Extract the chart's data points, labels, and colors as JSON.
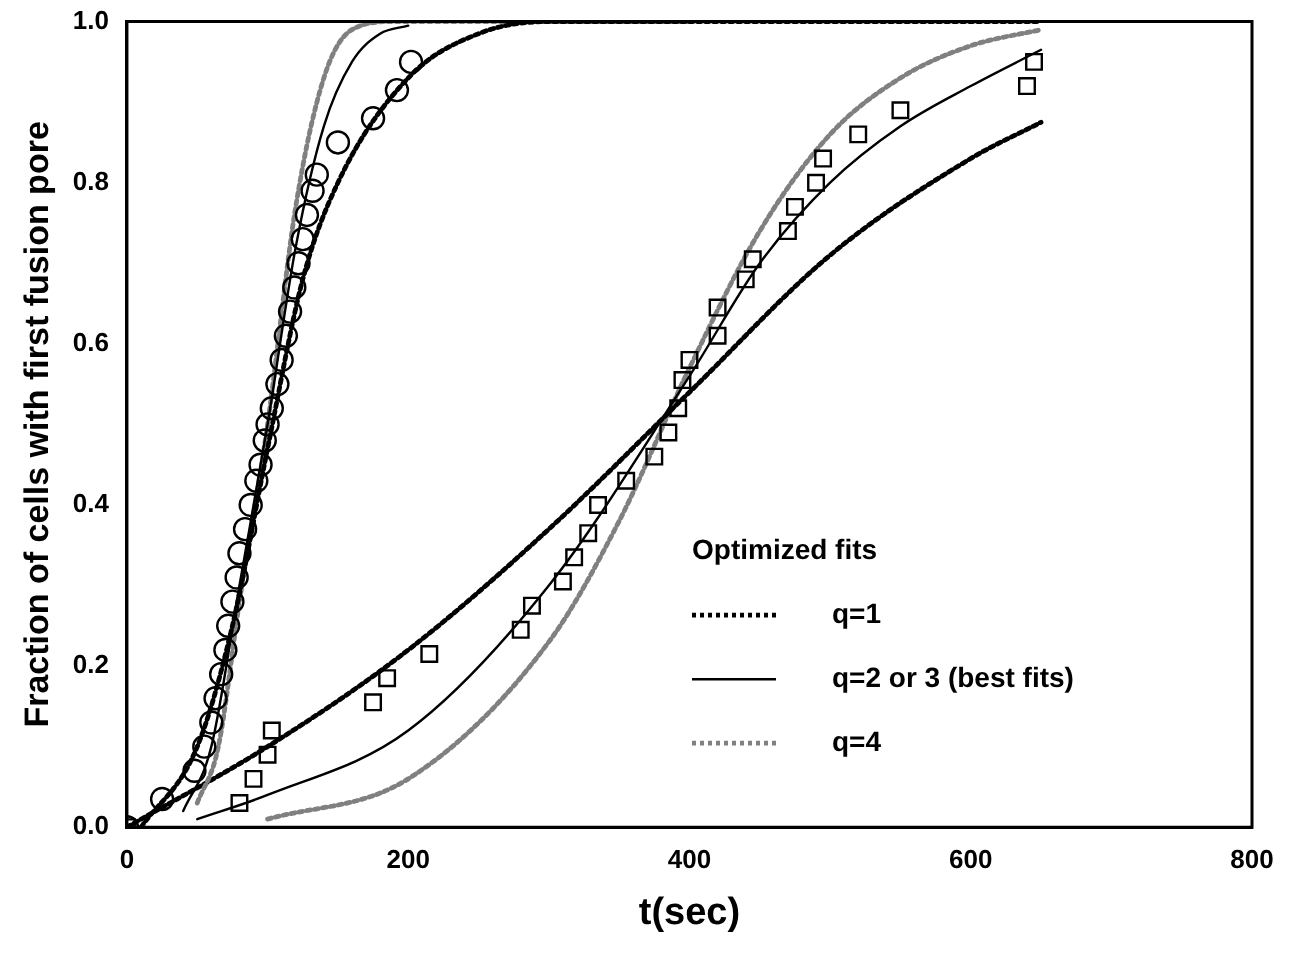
{
  "chart_data": {
    "type": "line",
    "xlabel": "t(sec)",
    "ylabel": "Fraction of cells with first fusion pore",
    "legend_title": "Optimized fits",
    "legend": "bottom right",
    "grid": false,
    "xlim": [
      0,
      800
    ],
    "xticks": [
      0,
      200,
      400,
      600,
      800
    ],
    "ylim": [
      0,
      1
    ],
    "yticks": [
      {
        "value": 0,
        "label": "0.0"
      },
      {
        "value": 0.2,
        "label": "0.2"
      },
      {
        "value": 0.4,
        "label": "0.4"
      },
      {
        "value": 0.6,
        "label": "0.6"
      },
      {
        "value": 0.8,
        "label": "0.8"
      },
      {
        "value": 1,
        "label": "1.0"
      }
    ],
    "series": [
      {
        "type": "scatter",
        "marker": "circle",
        "color": "#000000",
        "x": [
          0,
          25,
          48,
          55,
          60,
          63,
          67,
          70,
          72,
          75,
          78,
          80,
          84,
          88,
          92,
          95,
          98,
          100,
          103,
          107,
          110,
          113,
          116,
          119,
          122,
          125,
          128,
          132,
          135,
          150,
          175,
          192,
          202
        ],
        "values": [
          0,
          0.035,
          0.07,
          0.1,
          0.13,
          0.16,
          0.19,
          0.22,
          0.25,
          0.28,
          0.31,
          0.34,
          0.37,
          0.4,
          0.43,
          0.45,
          0.48,
          0.5,
          0.52,
          0.55,
          0.58,
          0.61,
          0.64,
          0.67,
          0.7,
          0.73,
          0.76,
          0.79,
          0.81,
          0.85,
          0.88,
          0.915,
          0.95
        ]
      },
      {
        "type": "scatter",
        "marker": "square",
        "color": "#000000",
        "x": [
          0,
          80,
          90,
          100,
          103,
          175,
          185,
          215,
          280,
          288,
          310,
          318,
          328,
          335,
          355,
          375,
          385,
          392,
          395,
          400,
          420,
          420,
          440,
          445,
          470,
          475,
          490,
          495,
          520,
          550,
          640,
          645
        ],
        "values": [
          0,
          0.03,
          0.06,
          0.09,
          0.12,
          0.155,
          0.185,
          0.215,
          0.245,
          0.275,
          0.305,
          0.335,
          0.365,
          0.4,
          0.43,
          0.46,
          0.49,
          0.52,
          0.555,
          0.58,
          0.61,
          0.645,
          0.68,
          0.705,
          0.74,
          0.77,
          0.8,
          0.83,
          0.86,
          0.89,
          0.92,
          0.95
        ]
      },
      {
        "name": "q=1",
        "type": "line",
        "line_style": "dotted",
        "marker": "none",
        "color": "#000000",
        "x": [
          10,
          50,
          75,
          100,
          125,
          150,
          200,
          250,
          300,
          650
        ],
        "values": [
          0,
          0.1,
          0.25,
          0.47,
          0.68,
          0.8,
          0.93,
          0.985,
          1,
          1
        ]
      },
      {
        "name": "q=2 or 3 (best fits)",
        "type": "line",
        "line_style": "solid",
        "marker": "none",
        "color": "#000000",
        "x": [
          40,
          60,
          80,
          100,
          120,
          140,
          160,
          180,
          200
        ],
        "values": [
          0.02,
          0.1,
          0.3,
          0.5,
          0.72,
          0.87,
          0.95,
          0.985,
          0.995
        ]
      },
      {
        "name": "q=4",
        "type": "line",
        "line_style": "dotted",
        "marker": "none",
        "color": "#808080",
        "x": [
          50,
          65,
          80,
          100,
          120,
          140,
          160,
          190,
          400
        ],
        "values": [
          0.03,
          0.1,
          0.28,
          0.5,
          0.77,
          0.93,
          0.99,
          1,
          1
        ]
      },
      {
        "type": "line",
        "line_style": "dotted",
        "marker": "none",
        "color": "#000000",
        "x": [
          0,
          100,
          200,
          300,
          400,
          500,
          600,
          650
        ],
        "values": [
          0,
          0.1,
          0.22,
          0.37,
          0.54,
          0.71,
          0.83,
          0.875
        ]
      },
      {
        "type": "line",
        "line_style": "solid",
        "marker": "none",
        "color": "#000000",
        "x": [
          50,
          100,
          200,
          300,
          400,
          450,
          500,
          550,
          600,
          650
        ],
        "values": [
          0.01,
          0.04,
          0.12,
          0.3,
          0.56,
          0.7,
          0.8,
          0.87,
          0.92,
          0.965
        ]
      },
      {
        "type": "line",
        "line_style": "dotted",
        "marker": "none",
        "color": "#808080",
        "x": [
          100,
          200,
          300,
          350,
          400,
          450,
          500,
          550,
          600,
          650
        ],
        "values": [
          0.01,
          0.06,
          0.23,
          0.38,
          0.57,
          0.74,
          0.86,
          0.93,
          0.97,
          0.99
        ]
      }
    ]
  }
}
